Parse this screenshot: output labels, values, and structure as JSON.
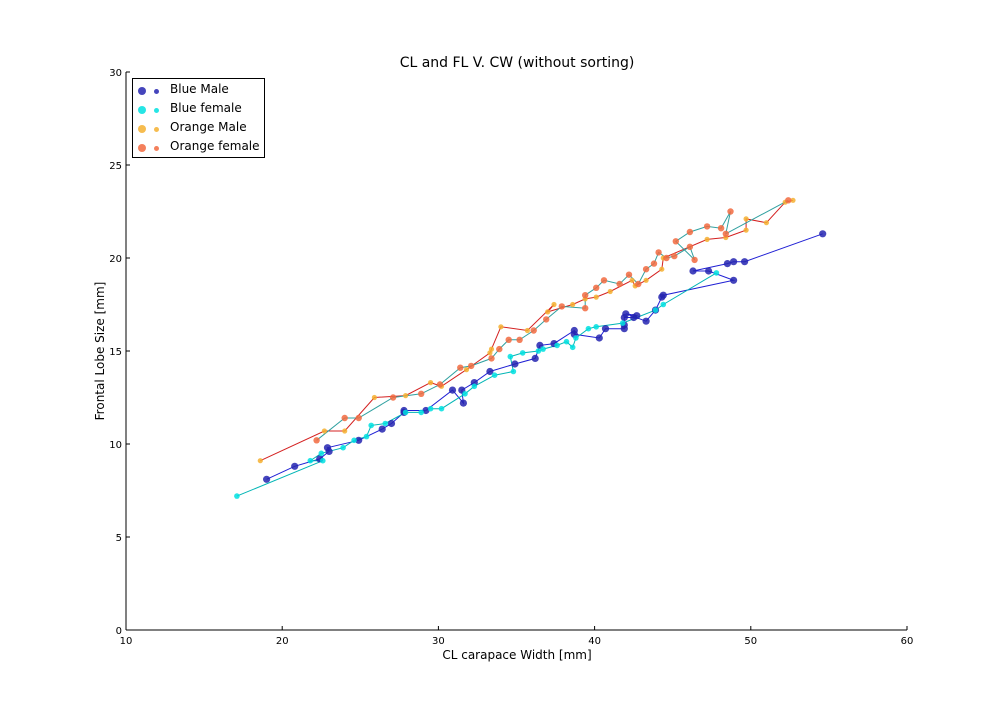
{
  "chart_data": {
    "type": "scatter",
    "title": "CL and FL V. CW (without sorting)",
    "xlabel": "CL carapace Width [mm]",
    "ylabel": "Frontal  Lobe  Size  [mm]",
    "xlim": [
      10,
      60
    ],
    "ylim": [
      0,
      30
    ],
    "xticks": [
      "10",
      "20",
      "30",
      "40",
      "50",
      "60"
    ],
    "yticks": [
      "0",
      "5",
      "10",
      "15",
      "20",
      "25",
      "30"
    ],
    "legend_position": "top-left",
    "grid": false,
    "series": [
      {
        "name": "Blue Male",
        "color": "#2424b0",
        "line_color": "#1f1fd4",
        "points": [
          [
            19.0,
            8.1
          ],
          [
            20.8,
            8.8
          ],
          [
            22.4,
            9.2
          ],
          [
            23.0,
            9.6
          ],
          [
            22.9,
            9.8
          ],
          [
            24.9,
            10.2
          ],
          [
            26.4,
            10.8
          ],
          [
            27.0,
            11.1
          ],
          [
            27.8,
            11.7
          ],
          [
            27.8,
            11.8
          ],
          [
            29.2,
            11.8
          ],
          [
            30.9,
            12.9
          ],
          [
            31.6,
            12.2
          ],
          [
            31.5,
            12.9
          ],
          [
            32.3,
            13.3
          ],
          [
            33.3,
            13.9
          ],
          [
            34.9,
            14.3
          ],
          [
            36.2,
            14.6
          ],
          [
            36.5,
            15.3
          ],
          [
            37.4,
            15.4
          ],
          [
            38.7,
            16.1
          ],
          [
            38.7,
            15.9
          ],
          [
            40.3,
            15.7
          ],
          [
            40.7,
            16.2
          ],
          [
            41.9,
            16.2
          ],
          [
            41.9,
            16.4
          ],
          [
            41.9,
            16.8
          ],
          [
            42.5,
            16.8
          ],
          [
            42.7,
            16.9
          ],
          [
            42.0,
            17.0
          ],
          [
            43.3,
            16.6
          ],
          [
            43.9,
            17.2
          ],
          [
            44.3,
            17.9
          ],
          [
            44.4,
            18.0
          ],
          [
            48.9,
            18.8
          ],
          [
            47.3,
            19.3
          ],
          [
            46.3,
            19.3
          ],
          [
            48.5,
            19.7
          ],
          [
            48.9,
            19.8
          ],
          [
            49.6,
            19.8
          ],
          [
            54.6,
            21.3
          ]
        ]
      },
      {
        "name": "Blue female",
        "color": "#00e0e0",
        "line_color": "#00b5b5",
        "points": [
          [
            17.1,
            7.2
          ],
          [
            22.6,
            9.1
          ],
          [
            21.8,
            9.1
          ],
          [
            22.5,
            9.5
          ],
          [
            23.9,
            9.8
          ],
          [
            24.6,
            10.2
          ],
          [
            25.4,
            10.4
          ],
          [
            25.7,
            11.0
          ],
          [
            26.6,
            11.1
          ],
          [
            27.9,
            11.7
          ],
          [
            28.9,
            11.7
          ],
          [
            29.5,
            11.9
          ],
          [
            30.2,
            11.9
          ],
          [
            31.7,
            12.7
          ],
          [
            32.3,
            13.1
          ],
          [
            33.6,
            13.7
          ],
          [
            34.8,
            13.9
          ],
          [
            34.6,
            14.7
          ],
          [
            35.4,
            14.9
          ],
          [
            36.4,
            15.0
          ],
          [
            36.7,
            15.1
          ],
          [
            37.6,
            15.3
          ],
          [
            38.2,
            15.5
          ],
          [
            38.6,
            15.2
          ],
          [
            38.8,
            15.7
          ],
          [
            39.6,
            16.2
          ],
          [
            40.1,
            16.3
          ],
          [
            41.8,
            16.5
          ],
          [
            43.9,
            17.2
          ],
          [
            44.4,
            17.5
          ],
          [
            47.8,
            19.2
          ]
        ]
      },
      {
        "name": "Orange Male",
        "color": "#f5b030",
        "line_color": "#d42020",
        "points": [
          [
            18.6,
            9.1
          ],
          [
            22.7,
            10.7
          ],
          [
            24.0,
            10.7
          ],
          [
            25.9,
            12.5
          ],
          [
            27.9,
            12.6
          ],
          [
            29.5,
            13.3
          ],
          [
            30.2,
            13.1
          ],
          [
            31.8,
            14.0
          ],
          [
            33.3,
            14.9
          ],
          [
            33.4,
            15.1
          ],
          [
            34.0,
            16.3
          ],
          [
            35.7,
            16.1
          ],
          [
            37.4,
            17.5
          ],
          [
            37.0,
            17.1
          ],
          [
            38.6,
            17.5
          ],
          [
            39.4,
            17.8
          ],
          [
            40.1,
            17.9
          ],
          [
            41.0,
            18.2
          ],
          [
            42.4,
            18.8
          ],
          [
            42.6,
            18.5
          ],
          [
            43.3,
            18.8
          ],
          [
            44.3,
            19.4
          ],
          [
            44.4,
            20.0
          ],
          [
            47.2,
            21.0
          ],
          [
            48.4,
            21.1
          ],
          [
            49.7,
            21.5
          ],
          [
            49.7,
            22.1
          ],
          [
            51.0,
            21.9
          ],
          [
            52.2,
            23.0
          ],
          [
            52.7,
            23.1
          ]
        ]
      },
      {
        "name": "Orange female",
        "color": "#f26a40",
        "line_color": "#2fa0a0",
        "points": [
          [
            22.2,
            10.2
          ],
          [
            24.0,
            11.4
          ],
          [
            24.9,
            11.4
          ],
          [
            27.1,
            12.5
          ],
          [
            28.9,
            12.7
          ],
          [
            30.1,
            13.2
          ],
          [
            31.4,
            14.1
          ],
          [
            32.1,
            14.2
          ],
          [
            33.4,
            14.6
          ],
          [
            33.9,
            15.1
          ],
          [
            34.5,
            15.6
          ],
          [
            35.2,
            15.6
          ],
          [
            36.1,
            16.1
          ],
          [
            36.9,
            16.7
          ],
          [
            37.9,
            17.4
          ],
          [
            39.4,
            17.3
          ],
          [
            39.4,
            18.0
          ],
          [
            40.1,
            18.4
          ],
          [
            40.6,
            18.8
          ],
          [
            41.6,
            18.6
          ],
          [
            42.2,
            19.1
          ],
          [
            42.8,
            18.6
          ],
          [
            43.3,
            19.4
          ],
          [
            43.8,
            19.7
          ],
          [
            44.1,
            20.3
          ],
          [
            44.6,
            20.0
          ],
          [
            45.1,
            20.1
          ],
          [
            46.1,
            20.6
          ],
          [
            46.4,
            19.9
          ],
          [
            45.2,
            20.9
          ],
          [
            46.1,
            21.4
          ],
          [
            47.2,
            21.7
          ],
          [
            48.1,
            21.6
          ],
          [
            48.7,
            22.5
          ],
          [
            48.4,
            21.3
          ],
          [
            52.4,
            23.1
          ]
        ]
      }
    ]
  }
}
